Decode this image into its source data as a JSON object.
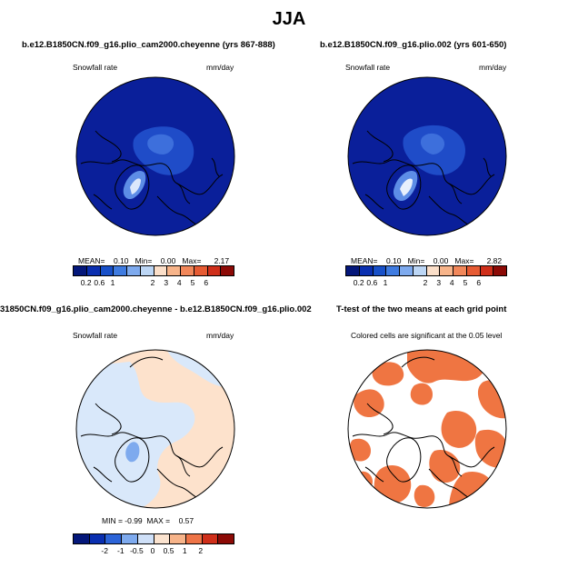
{
  "main_title": "JJA",
  "panels": [
    {
      "title": "b.e12.B1850CN.f09_g16.plio_cam2000.cheyenne (yrs 867-888)",
      "left_label": "Snowfall rate",
      "right_label": "mm/day",
      "stats": {
        "mean_label": "MEAN=",
        "mean": "0.10",
        "min_label": "Min=",
        "min": "0.00",
        "max_label": "Max=",
        "max": "2.17"
      },
      "colorbar_ticks": [
        "0.2",
        "0.6",
        "1",
        "2",
        "3",
        "4",
        "5",
        "6"
      ]
    },
    {
      "title": "b.e12.B1850CN.f09_g16.plio.002 (yrs 601-650)",
      "left_label": "Snowfall rate",
      "right_label": "mm/day",
      "stats": {
        "mean_label": "MEAN=",
        "mean": "0.10",
        "min_label": "Min=",
        "min": "0.00",
        "max_label": "Max=",
        "max": "2.82"
      },
      "colorbar_ticks": [
        "0.2",
        "0.6",
        "1",
        "2",
        "3",
        "4",
        "5",
        "6"
      ]
    },
    {
      "title": "31850CN.f09_g16.plio_cam2000.cheyenne - b.e12.B1850CN.f09_g16.plio.002",
      "left_label": "Snowfall rate",
      "right_label": "mm/day",
      "stats": {
        "min_label": "MIN =",
        "min": "-0.99",
        "max_label": "MAX =",
        "max": "0.57"
      },
      "colorbar_ticks": [
        "-2",
        "-1",
        "-0.5",
        "0",
        "0.5",
        "1",
        "2"
      ]
    },
    {
      "title": "T-test of the two means at each grid point",
      "subtitle": "Colored cells are significant at the 0.05 level"
    }
  ],
  "colors": {
    "abs_scale": [
      "#04177a",
      "#0a2fb0",
      "#1850c8",
      "#3f7be0",
      "#7eaaee",
      "#bcd6f5",
      "#fbdfc9",
      "#f7b48a",
      "#f1875a",
      "#e65b33",
      "#cf2f1a",
      "#8c0a06"
    ],
    "diff_scale": [
      "#04177a",
      "#0a2fb0",
      "#2c64d8",
      "#7eaaee",
      "#cfe0f8",
      "#fbe3cf",
      "#f7b48a",
      "#ee7447",
      "#cf2f1a",
      "#8c0a06"
    ],
    "snow_field": "#0a1f9a",
    "snow_moderate": "#1f4cc8",
    "snow_light": "#5d8de6",
    "diff_positive": "#fde2cc",
    "diff_negative": "#d9e8fa",
    "signif": "#ef7542",
    "coast": "#000000"
  }
}
